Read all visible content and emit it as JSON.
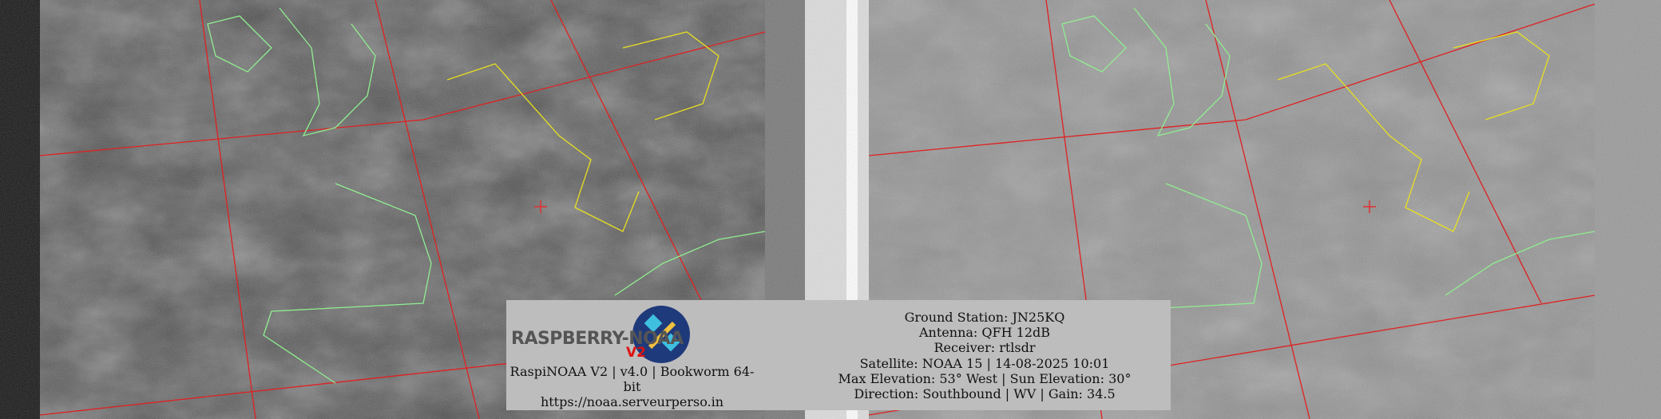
{
  "image": {
    "channels": [
      "left-visible",
      "right-infrared"
    ],
    "colors": {
      "grid": "#e02020",
      "coastline": "#90ee90",
      "borders": "#e8e020",
      "overlay_bg": "#bdbdbd"
    }
  },
  "overlay": {
    "logo_text": "RASPBERRY-NOAA",
    "logo_version": "V2",
    "software_line1": "RaspiNOAA V2 | v4.0 | Bookworm 64-",
    "software_line2": "bit",
    "website": "https://noaa.serveurperso.in",
    "ground_station": "Ground Station: JN25KQ",
    "antenna": "Antenna: QFH 12dB",
    "receiver": "Receiver: rtlsdr",
    "satellite": "Satellite: NOAA 15 | 14-08-2025 10:01",
    "elevation": "Max Elevation: 53° West | Sun Elevation: 30°",
    "direction": "Direction: Southbound | WV | Gain: 34.5"
  }
}
